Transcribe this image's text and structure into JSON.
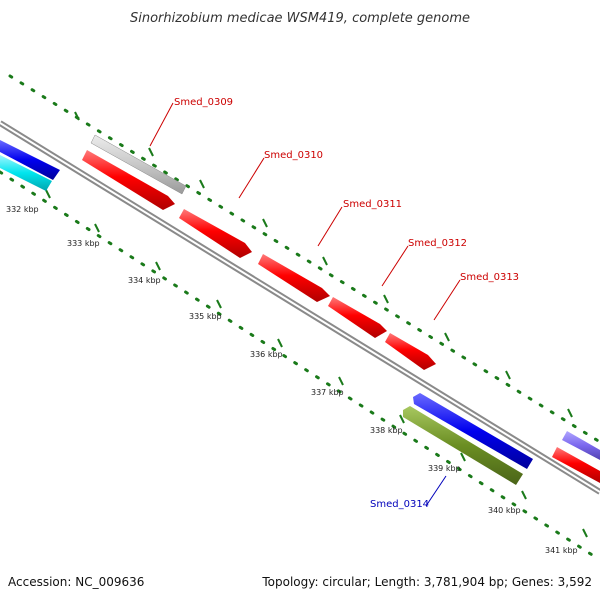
{
  "title": "Sinorhizobium medicae WSM419, complete genome",
  "accession": "Accession: NC_009636",
  "topology": "Topology: circular; Length: 3,781,904 bp; Genes: 3,592",
  "colors": {
    "backbone": "#8a8a8a",
    "scale_dots": "#1a7a1a",
    "forward_label": "#cc0000",
    "reverse_label": "#0000bb"
  },
  "scale": {
    "ticks": [
      "332 kbp",
      "333 kbp",
      "334 kbp",
      "335 kbp",
      "336 kbp",
      "337 kbp",
      "338 kbp",
      "339 kbp",
      "340 kbp",
      "341 kbp"
    ]
  },
  "genes": [
    {
      "id": "Smed_0309",
      "label": "Smed_0309",
      "color": "#c8c8c8",
      "track": "outer",
      "strand": "forward"
    },
    {
      "id": "Smed_0310",
      "label": "Smed_0310",
      "color": "#ff0000",
      "track": "forward",
      "strand": "forward"
    },
    {
      "id": "Smed_0311",
      "label": "Smed_0311",
      "color": "#ff0000",
      "track": "forward",
      "strand": "forward"
    },
    {
      "id": "Smed_0312",
      "label": "Smed_0312",
      "color": "#ff0000",
      "track": "forward",
      "strand": "forward"
    },
    {
      "id": "Smed_0313",
      "label": "Smed_0313",
      "color": "#ff0000",
      "track": "forward",
      "strand": "forward"
    },
    {
      "id": "Smed_0314",
      "label": "Smed_0314",
      "color": "#6b8e23",
      "track": "reverse",
      "strand": "reverse"
    },
    {
      "id": "blue-reverse",
      "label": "",
      "color": "#0000ee",
      "track": "reverse-inner",
      "strand": "reverse"
    },
    {
      "id": "blue-left",
      "label": "",
      "color": "#0000ee",
      "track": "reverse-inner",
      "strand": "reverse"
    },
    {
      "id": "cyan-left",
      "label": "",
      "color": "#00e5ee",
      "track": "reverse",
      "strand": "reverse"
    },
    {
      "id": "red-right",
      "label": "",
      "color": "#ff0000",
      "track": "forward",
      "strand": "forward"
    },
    {
      "id": "purple-right",
      "label": "",
      "color": "#7b68ee",
      "track": "outer",
      "strand": "forward"
    }
  ]
}
